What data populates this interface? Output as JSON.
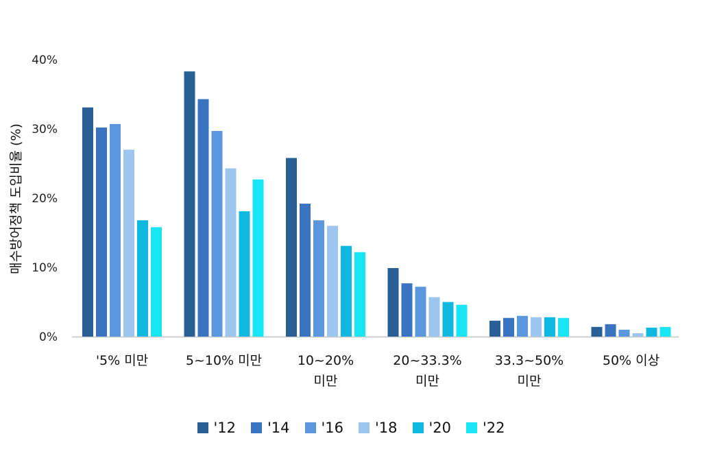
{
  "chart_data": {
    "type": "bar",
    "ylabel": "매수방어정책 도입비율 (%)",
    "xlabel": "",
    "ylim": [
      0,
      40
    ],
    "yticks": [
      "0%",
      "10%",
      "20%",
      "30%",
      "40%"
    ],
    "categories": [
      "'5% 미만",
      "5~10% 미만",
      "10~20%\n미만",
      "20~33.3%\n미만",
      "33.3~50%\n미만",
      "50% 이상"
    ],
    "legend_position": "bottom",
    "grid": false,
    "series": [
      {
        "name": "'12",
        "color": "#2a5f96",
        "values": [
          33.1,
          38.3,
          25.8,
          9.9,
          2.3,
          1.4
        ]
      },
      {
        "name": "'14",
        "color": "#3a74c0",
        "values": [
          30.2,
          34.3,
          19.2,
          7.7,
          2.7,
          1.8
        ]
      },
      {
        "name": "'16",
        "color": "#5b97dc",
        "values": [
          30.7,
          29.7,
          16.8,
          7.2,
          3.0,
          1.0
        ]
      },
      {
        "name": "'18",
        "color": "#9cc6ee",
        "values": [
          27.0,
          24.3,
          16.0,
          5.7,
          2.8,
          0.5
        ]
      },
      {
        "name": "'20",
        "color": "#0fb8e0",
        "values": [
          16.8,
          18.1,
          13.1,
          5.0,
          2.8,
          1.3
        ]
      },
      {
        "name": "'22",
        "color": "#19e6f4",
        "values": [
          15.8,
          22.7,
          12.2,
          4.6,
          2.7,
          1.4
        ]
      }
    ]
  }
}
